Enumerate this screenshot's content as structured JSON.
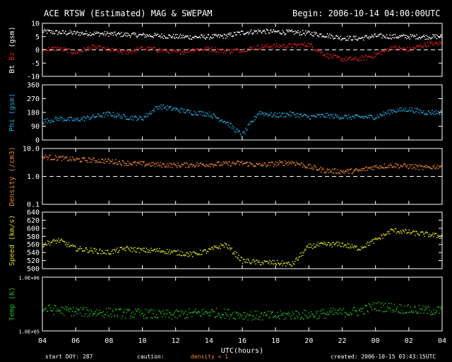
{
  "header": {
    "title": "ACE RTSW (Estimated) MAG & SWEPAM",
    "begin": "Begin: 2006-10-14 04:00:00UTC"
  },
  "footer": {
    "start_doy": "start DOY: 287",
    "caution": "caution:",
    "caution_note": "density < 1",
    "created": "created: 2006-10-15 03:43:15UTC"
  },
  "colors": {
    "background": "#000000",
    "axes": "#ffffff",
    "bt": "#ffffff",
    "bz": "#dd2020",
    "phi": "#22aadd",
    "density": "#ee8833",
    "speed": "#dddd22",
    "temp": "#22bb22"
  },
  "chart_data": [
    {
      "type": "scatter",
      "id": "mag",
      "ylabel_parts": [
        "Bt",
        "Bz",
        "(gsm)"
      ],
      "ylim": [
        -10,
        10
      ],
      "yticks": [
        10,
        5,
        0,
        -5,
        -10
      ],
      "ytick_labels": [
        "10",
        "5",
        "0",
        "-5",
        "-10"
      ],
      "reference_line": 0,
      "series": [
        {
          "name": "Bt",
          "color_key": "bt",
          "x": [
            0,
            1,
            2,
            3,
            4,
            5,
            6,
            7,
            8,
            9,
            10,
            11,
            12,
            13,
            14,
            15,
            16,
            17,
            18,
            19,
            20,
            21,
            22,
            23,
            24
          ],
          "y": [
            7,
            6.5,
            6.3,
            6.2,
            6.0,
            5.7,
            5.5,
            5.3,
            5.0,
            4.8,
            4.9,
            5.2,
            6.5,
            7.0,
            6.8,
            6.6,
            6.3,
            5.5,
            4.5,
            4.3,
            5.2,
            5.0,
            5.0,
            4.9,
            5.0
          ]
        },
        {
          "name": "Bz",
          "color_key": "bz",
          "x": [
            0,
            1,
            2,
            3,
            4,
            5,
            6,
            7,
            8,
            9,
            10,
            11,
            12,
            13,
            14,
            15,
            16,
            17,
            18,
            19,
            20,
            21,
            22,
            23,
            24
          ],
          "y": [
            0,
            0.5,
            -1,
            1,
            0,
            -1,
            0.5,
            0,
            -1,
            0,
            0.5,
            -0.5,
            0,
            1,
            1.5,
            1.5,
            2,
            -2,
            -3.5,
            -3.5,
            -2,
            1,
            0,
            2,
            2.5
          ]
        }
      ]
    },
    {
      "type": "scatter",
      "id": "phi",
      "ylabel": "Phi (gsm)",
      "ylim": [
        0,
        360
      ],
      "yticks": [
        360,
        270,
        180,
        90,
        0
      ],
      "ytick_labels": [
        "360",
        "270",
        "180",
        "90",
        "0"
      ],
      "series": [
        {
          "name": "Phi",
          "color_key": "phi",
          "x": [
            0,
            1,
            2,
            3,
            4,
            5,
            6,
            7,
            8,
            9,
            10,
            11,
            12,
            13,
            14,
            15,
            16,
            17,
            18,
            19,
            20,
            21,
            22,
            23,
            24
          ],
          "y": [
            120,
            140,
            130,
            150,
            170,
            150,
            140,
            220,
            200,
            180,
            170,
            120,
            30,
            180,
            160,
            170,
            150,
            160,
            150,
            150,
            150,
            190,
            200,
            180,
            180
          ]
        }
      ]
    },
    {
      "type": "scatter",
      "id": "density",
      "ylabel": "Density (/cm3)",
      "yscale": "log",
      "ylim": [
        0.1,
        10
      ],
      "yticks": [
        10,
        1,
        0.1
      ],
      "ytick_labels": [
        "10.0",
        "1.0",
        "0.1"
      ],
      "reference_line": 1,
      "series": [
        {
          "name": "Density",
          "color_key": "density",
          "x": [
            0,
            1,
            2,
            3,
            4,
            5,
            6,
            7,
            8,
            9,
            10,
            11,
            12,
            13,
            14,
            15,
            16,
            17,
            18,
            19,
            20,
            21,
            22,
            23,
            24
          ],
          "y": [
            5,
            4.5,
            4,
            3.8,
            3.5,
            3,
            2.8,
            2.6,
            2.5,
            2.6,
            2.7,
            2.8,
            3.0,
            2.5,
            2.8,
            3.2,
            2.2,
            1.6,
            1.5,
            1.6,
            2.2,
            2.5,
            2.3,
            2.0,
            2.4
          ]
        }
      ]
    },
    {
      "type": "scatter",
      "id": "speed",
      "ylabel": "Speed (km/s)",
      "ylim": [
        500,
        640
      ],
      "yticks": [
        640,
        620,
        600,
        580,
        560,
        540,
        520,
        500
      ],
      "ytick_labels": [
        "640",
        "620",
        "600",
        "580",
        "560",
        "540",
        "520",
        "500"
      ],
      "series": [
        {
          "name": "Speed",
          "color_key": "speed",
          "x": [
            0,
            1,
            2,
            3,
            4,
            5,
            6,
            7,
            8,
            9,
            10,
            11,
            12,
            13,
            14,
            15,
            16,
            17,
            18,
            19,
            20,
            21,
            22,
            23,
            24
          ],
          "y": [
            560,
            570,
            550,
            545,
            540,
            550,
            545,
            545,
            540,
            535,
            545,
            560,
            520,
            515,
            515,
            510,
            555,
            560,
            560,
            550,
            570,
            595,
            590,
            585,
            580
          ]
        }
      ]
    },
    {
      "type": "scatter",
      "id": "temp",
      "ylabel": "Temp (K)",
      "yscale": "log",
      "ylim": [
        100000,
        1000000
      ],
      "yticks": [
        1000000,
        100000
      ],
      "ytick_labels": [
        "1.0E+06",
        "1.0E+05"
      ],
      "series": [
        {
          "name": "Temp",
          "color_key": "temp",
          "x": [
            0,
            1,
            2,
            3,
            4,
            5,
            6,
            7,
            8,
            9,
            10,
            11,
            12,
            13,
            14,
            15,
            16,
            17,
            18,
            19,
            20,
            21,
            22,
            23,
            24
          ],
          "y": [
            260000,
            240000,
            230000,
            220000,
            220000,
            210000,
            210000,
            200000,
            200000,
            210000,
            220000,
            210000,
            200000,
            190000,
            190000,
            200000,
            200000,
            210000,
            220000,
            230000,
            290000,
            270000,
            250000,
            240000,
            240000
          ]
        }
      ]
    },
    {
      "type": "time-axis",
      "id": "xaxis",
      "xlabel": "UTC(hours)",
      "xlim": [
        0,
        24
      ],
      "xticks": [
        0,
        2,
        4,
        6,
        8,
        10,
        12,
        14,
        16,
        18,
        20,
        22,
        24
      ],
      "xtick_labels": [
        "04",
        "06",
        "08",
        "10",
        "12",
        "14",
        "16",
        "18",
        "20",
        "22",
        "00",
        "02",
        "04"
      ]
    }
  ]
}
